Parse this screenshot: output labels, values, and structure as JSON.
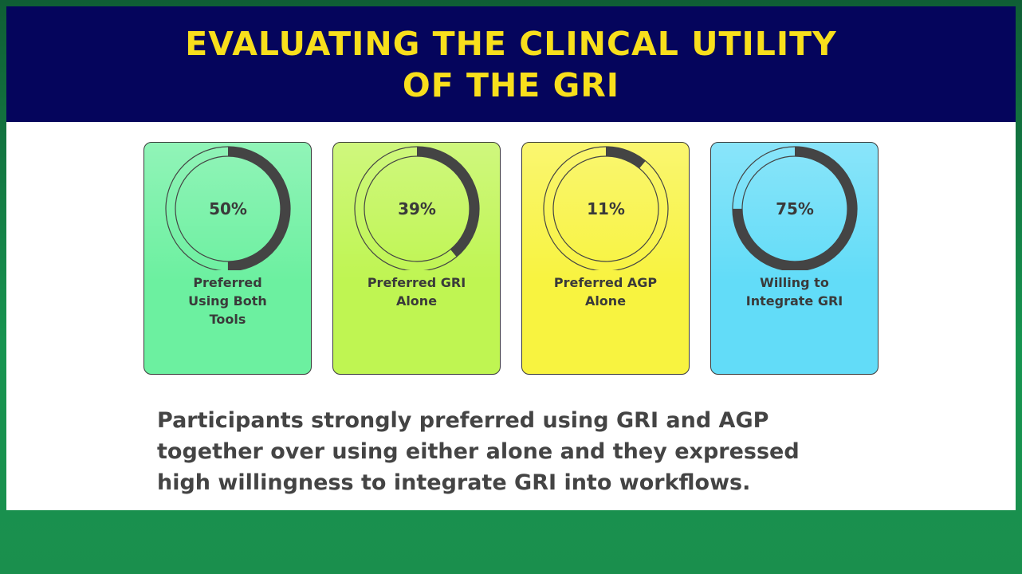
{
  "chart_data": {
    "type": "donut",
    "title": "EVALUATING THE CLINCAL UTILITY\nOF THE GRI",
    "categories": [
      "Preferred\nUsing Both\nTools",
      "Preferred GRI\nAlone",
      "Preferred AGP\nAlone",
      "Willing to\nIntegrate GRI"
    ],
    "values": [
      50,
      39,
      11,
      75
    ],
    "value_labels": [
      "50%",
      "39%",
      "11%",
      "75%"
    ],
    "colors": [
      "#6cf0a0",
      "#bff552",
      "#f8f340",
      "#62dcf8"
    ],
    "ylim": [
      0,
      100
    ],
    "annotation": "Participants strongly preferred using GRI and AGP\ntogether over using either alone and they expressed\nhigh willingness to integrate GRI into workflows."
  }
}
